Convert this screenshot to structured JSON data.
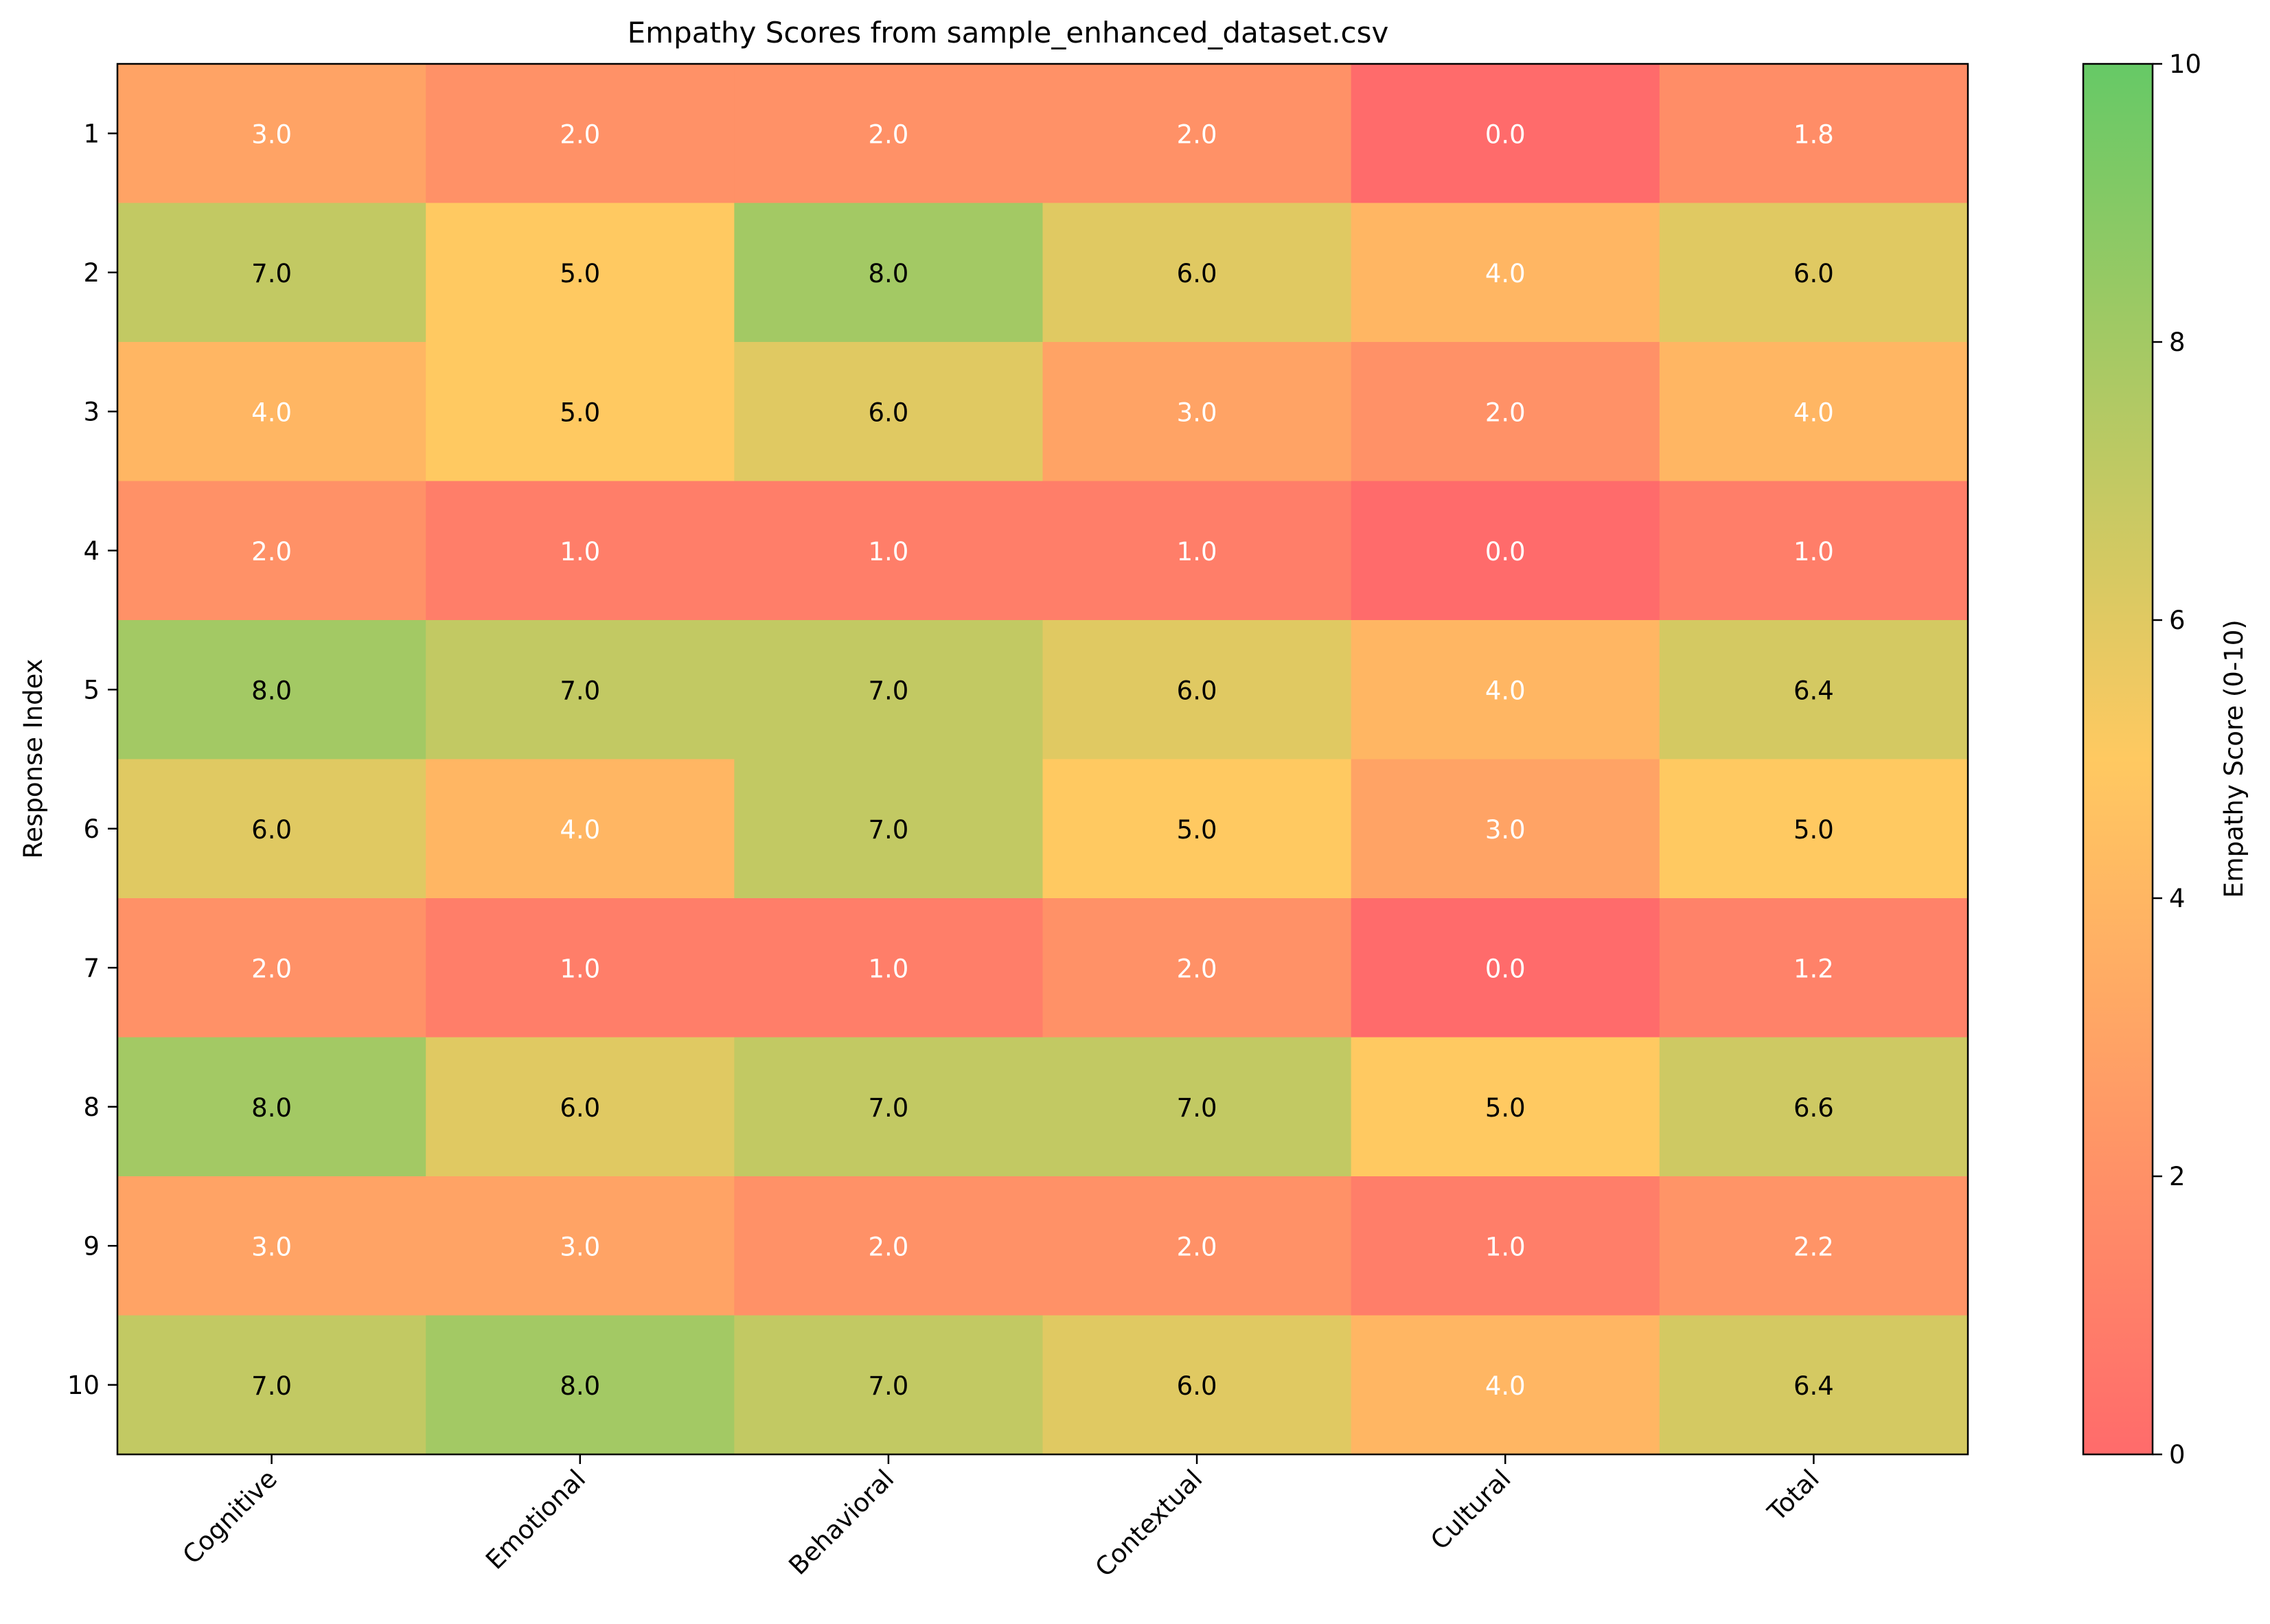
{
  "chart_data": {
    "type": "heatmap",
    "title": "Empathy Scores from sample_enhanced_dataset.csv",
    "xlabel": "",
    "ylabel": "Response Index",
    "x_categories": [
      "Cognitive",
      "Emotional",
      "Behavioral",
      "Contextual",
      "Cultural",
      "Total"
    ],
    "y_categories": [
      "1",
      "2",
      "3",
      "4",
      "5",
      "6",
      "7",
      "8",
      "9",
      "10"
    ],
    "values": [
      [
        3.0,
        2.0,
        2.0,
        2.0,
        0.0,
        1.8
      ],
      [
        7.0,
        5.0,
        8.0,
        6.0,
        4.0,
        6.0
      ],
      [
        4.0,
        5.0,
        6.0,
        3.0,
        2.0,
        4.0
      ],
      [
        2.0,
        1.0,
        1.0,
        1.0,
        0.0,
        1.0
      ],
      [
        8.0,
        7.0,
        7.0,
        6.0,
        4.0,
        6.4
      ],
      [
        6.0,
        4.0,
        7.0,
        5.0,
        3.0,
        5.0
      ],
      [
        2.0,
        1.0,
        1.0,
        2.0,
        0.0,
        1.2
      ],
      [
        8.0,
        6.0,
        7.0,
        7.0,
        5.0,
        6.6
      ],
      [
        3.0,
        3.0,
        2.0,
        2.0,
        1.0,
        2.2
      ],
      [
        7.0,
        8.0,
        7.0,
        6.0,
        4.0,
        6.4
      ]
    ],
    "value_range": [
      0,
      10
    ],
    "colorbar": {
      "label": "Empathy Score (0-10)",
      "ticks": [
        "0",
        "2",
        "4",
        "6",
        "8",
        "10"
      ],
      "colors": [
        "#ff6b6b",
        "#ffc961",
        "#66c966"
      ]
    },
    "grid": false,
    "legend": "none"
  }
}
